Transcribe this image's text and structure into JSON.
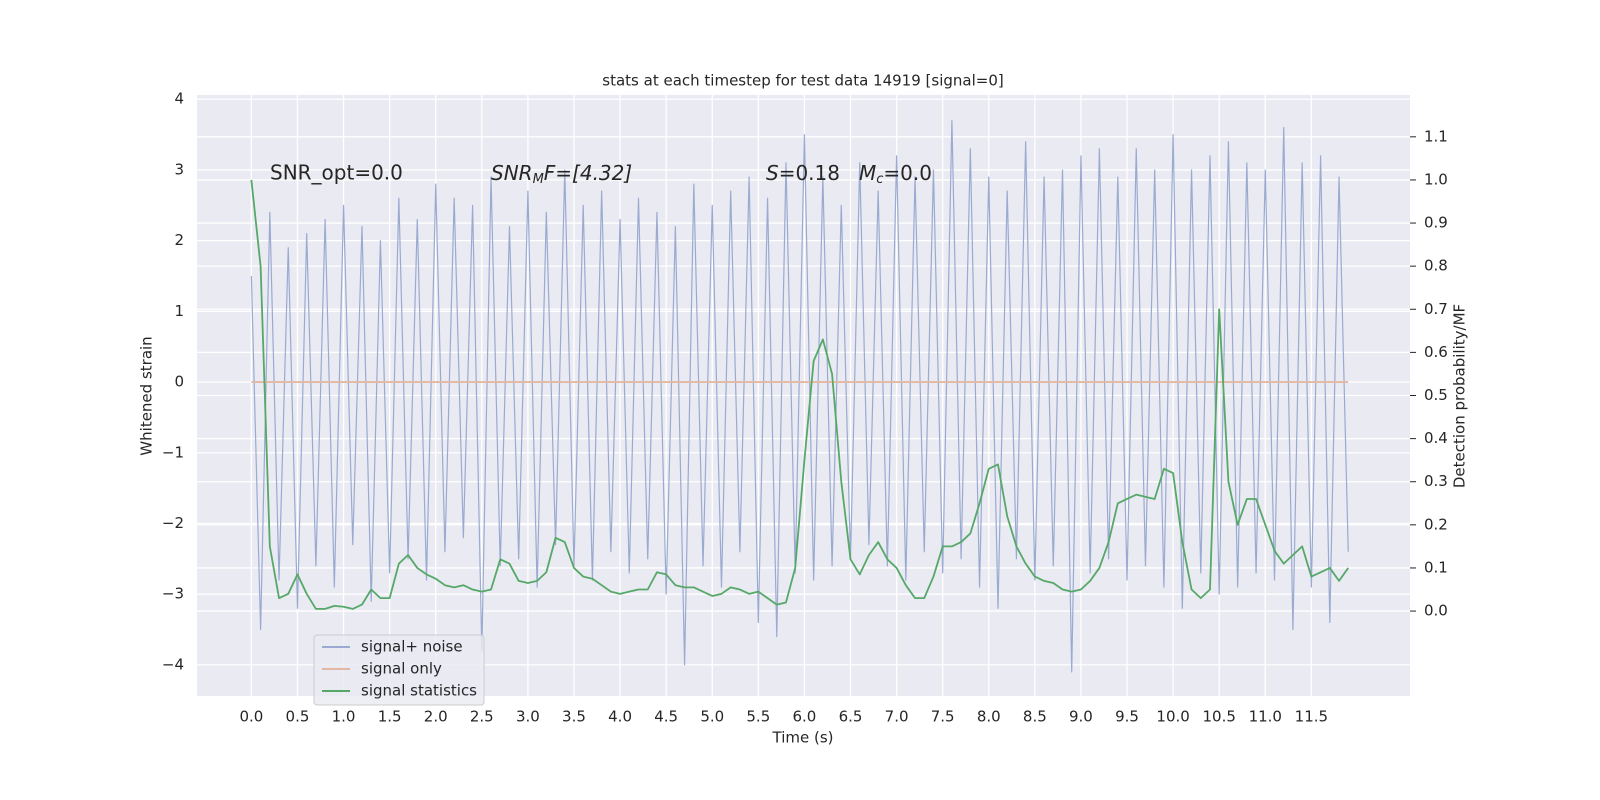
{
  "chart_data": {
    "type": "line",
    "title": "stats at each timestep for test data 14919 [signal=0]",
    "xlabel": "Time (s)",
    "ylabel": "Whitened strain",
    "y2label": "Detection probability/MF",
    "annotations": [
      [
        "SNR_opt=0.0"
      ],
      [
        "SNR",
        "M",
        "F=[4.32]"
      ],
      [
        "S",
        "=0.18"
      ],
      [
        "M",
        "c",
        "=0.0"
      ]
    ],
    "x": [
      0,
      0.1,
      0.2,
      0.3,
      0.4,
      0.5,
      0.6,
      0.7,
      0.8,
      0.9,
      1.0,
      1.1,
      1.2,
      1.3,
      1.4,
      1.5,
      1.6,
      1.7,
      1.8,
      1.9,
      2.0,
      2.1,
      2.2,
      2.3,
      2.4,
      2.5,
      2.6,
      2.7,
      2.8,
      2.9,
      3.0,
      3.1,
      3.2,
      3.3,
      3.4,
      3.5,
      3.6,
      3.7,
      3.8,
      3.9,
      4.0,
      4.1,
      4.2,
      4.3,
      4.4,
      4.5,
      4.6,
      4.7,
      4.8,
      4.9,
      5.0,
      5.1,
      5.2,
      5.3,
      5.4,
      5.5,
      5.6,
      5.7,
      5.8,
      5.9,
      6.0,
      6.1,
      6.2,
      6.3,
      6.4,
      6.5,
      6.6,
      6.7,
      6.8,
      6.9,
      7.0,
      7.1,
      7.2,
      7.3,
      7.4,
      7.5,
      7.6,
      7.7,
      7.8,
      7.9,
      8.0,
      8.1,
      8.2,
      8.3,
      8.4,
      8.5,
      8.6,
      8.7,
      8.8,
      8.9,
      9.0,
      9.1,
      9.2,
      9.3,
      9.4,
      9.5,
      9.6,
      9.7,
      9.8,
      9.9,
      10.0,
      10.1,
      10.2,
      10.3,
      10.4,
      10.5,
      10.6,
      10.7,
      10.8,
      10.9,
      11.0,
      11.1,
      11.2,
      11.3,
      11.4,
      11.5,
      11.6,
      11.7,
      11.8,
      11.9
    ],
    "series": [
      {
        "name": "signal+ noise",
        "color": "#9aaad0",
        "values": [
          1.5,
          -3.5,
          2.4,
          -2.8,
          1.9,
          -3.2,
          2.1,
          -2.6,
          2.3,
          -2.9,
          2.5,
          -2.3,
          2.2,
          -3.1,
          2.0,
          -2.7,
          2.6,
          -2.5,
          2.3,
          -2.8,
          2.8,
          -2.4,
          2.6,
          -2.2,
          2.5,
          -3.8,
          2.9,
          -2.6,
          2.2,
          -2.5,
          2.7,
          -2.9,
          2.4,
          -2.3,
          3.0,
          -2.6,
          2.5,
          -2.8,
          2.7,
          -2.4,
          2.3,
          -2.7,
          2.6,
          -2.5,
          2.4,
          -3.0,
          2.2,
          -4.0,
          2.8,
          -2.6,
          2.5,
          -2.9,
          2.7,
          -2.4,
          2.9,
          -3.4,
          2.6,
          -3.6,
          3.1,
          -2.7,
          3.5,
          -2.8,
          2.9,
          -2.6,
          2.5,
          -2.5,
          3.1,
          -2.3,
          2.7,
          -2.6,
          3.2,
          -2.8,
          2.9,
          -2.4,
          3.0,
          -2.7,
          3.7,
          -2.5,
          3.3,
          -2.9,
          2.9,
          -3.2,
          2.7,
          -2.5,
          3.4,
          -2.8,
          2.9,
          -2.6,
          3.0,
          -4.1,
          3.2,
          -2.7,
          3.3,
          -2.5,
          2.9,
          -2.8,
          3.3,
          -2.6,
          3.0,
          -2.9,
          3.5,
          -3.2,
          3.0,
          -2.7,
          3.2,
          -3.0,
          3.4,
          -2.9,
          3.1,
          -2.7,
          3.0,
          -2.8,
          3.6,
          -3.5,
          3.1,
          -2.9,
          3.2,
          -3.4,
          2.9,
          -2.4
        ]
      },
      {
        "name": "signal only",
        "color": "#e4b7a2",
        "values": [
          0,
          0,
          0,
          0,
          0,
          0,
          0,
          0,
          0,
          0,
          0,
          0,
          0,
          0,
          0,
          0,
          0,
          0,
          0,
          0,
          0,
          0,
          0,
          0,
          0,
          0,
          0,
          0,
          0,
          0,
          0,
          0,
          0,
          0,
          0,
          0,
          0,
          0,
          0,
          0,
          0,
          0,
          0,
          0,
          0,
          0,
          0,
          0,
          0,
          0,
          0,
          0,
          0,
          0,
          0,
          0,
          0,
          0,
          0,
          0,
          0,
          0,
          0,
          0,
          0,
          0,
          0,
          0,
          0,
          0,
          0,
          0,
          0,
          0,
          0,
          0,
          0,
          0,
          0,
          0,
          0,
          0,
          0,
          0,
          0,
          0,
          0,
          0,
          0,
          0,
          0,
          0,
          0,
          0,
          0,
          0,
          0,
          0,
          0,
          0,
          0,
          0,
          0,
          0,
          0,
          0,
          0,
          0,
          0,
          0,
          0,
          0,
          0,
          0,
          0,
          0,
          0,
          0,
          0,
          0
        ]
      },
      {
        "name": "signal statistics",
        "color": "#55a868",
        "axis": "y2",
        "values": [
          1.0,
          0.8,
          0.15,
          0.03,
          0.04,
          0.085,
          0.04,
          0.005,
          0.005,
          0.012,
          0.01,
          0.005,
          0.015,
          0.05,
          0.03,
          0.03,
          0.11,
          0.13,
          0.1,
          0.085,
          0.075,
          0.06,
          0.055,
          0.06,
          0.05,
          0.045,
          0.05,
          0.12,
          0.11,
          0.07,
          0.065,
          0.07,
          0.09,
          0.17,
          0.16,
          0.1,
          0.08,
          0.075,
          0.06,
          0.045,
          0.04,
          0.045,
          0.05,
          0.05,
          0.09,
          0.085,
          0.06,
          0.055,
          0.055,
          0.045,
          0.035,
          0.04,
          0.055,
          0.05,
          0.04,
          0.045,
          0.03,
          0.015,
          0.02,
          0.1,
          0.35,
          0.58,
          0.63,
          0.55,
          0.3,
          0.12,
          0.085,
          0.13,
          0.16,
          0.12,
          0.1,
          0.06,
          0.03,
          0.03,
          0.08,
          0.15,
          0.15,
          0.16,
          0.18,
          0.25,
          0.33,
          0.34,
          0.22,
          0.15,
          0.11,
          0.08,
          0.07,
          0.065,
          0.05,
          0.045,
          0.05,
          0.07,
          0.1,
          0.16,
          0.25,
          0.26,
          0.27,
          0.265,
          0.26,
          0.33,
          0.32,
          0.16,
          0.05,
          0.03,
          0.05,
          0.7,
          0.3,
          0.2,
          0.26,
          0.26,
          0.2,
          0.14,
          0.11,
          0.13,
          0.15,
          0.08,
          0.09,
          0.1,
          0.07,
          0.1
        ]
      }
    ],
    "xlim": [
      -0.59,
      12.57
    ],
    "xticks": [
      {
        "value": 0,
        "label": "0.0"
      },
      0.5,
      {
        "value": 1,
        "label": "1.0"
      },
      1.5,
      {
        "value": 2,
        "label": "2.0"
      },
      2.5,
      {
        "value": 3,
        "label": "3.0"
      },
      3.5,
      {
        "value": 4,
        "label": "4.0"
      },
      4.5,
      {
        "value": 5,
        "label": "5.0"
      },
      5.5,
      {
        "value": 6,
        "label": "6.0"
      },
      6.5,
      {
        "value": 7,
        "label": "7.0"
      },
      7.5,
      {
        "value": 8,
        "label": "8.0"
      },
      8.5,
      {
        "value": 9,
        "label": "9.0"
      },
      9.5,
      {
        "value": 10,
        "label": "10.0"
      },
      10.5,
      {
        "value": 11,
        "label": "11.0"
      },
      11.5
    ],
    "ylim": [
      -4.44,
      4.06
    ],
    "yticks": [
      {
        "value": -4,
        "label": "−4"
      },
      {
        "value": -3,
        "label": "−3"
      },
      {
        "value": -2,
        "label": "−2"
      },
      {
        "value": -1,
        "label": "−1"
      },
      0,
      1,
      2,
      3,
      4
    ],
    "y2lim": [
      -0.197,
      1.197
    ],
    "y2ticks": [
      {
        "value": 0,
        "label": "0.0"
      },
      0.1,
      0.2,
      0.3,
      0.4,
      0.5,
      0.6,
      0.7,
      0.8,
      0.9,
      {
        "value": 1,
        "label": "1.0"
      },
      1.1
    ],
    "grid": true,
    "legend": "lower left"
  }
}
